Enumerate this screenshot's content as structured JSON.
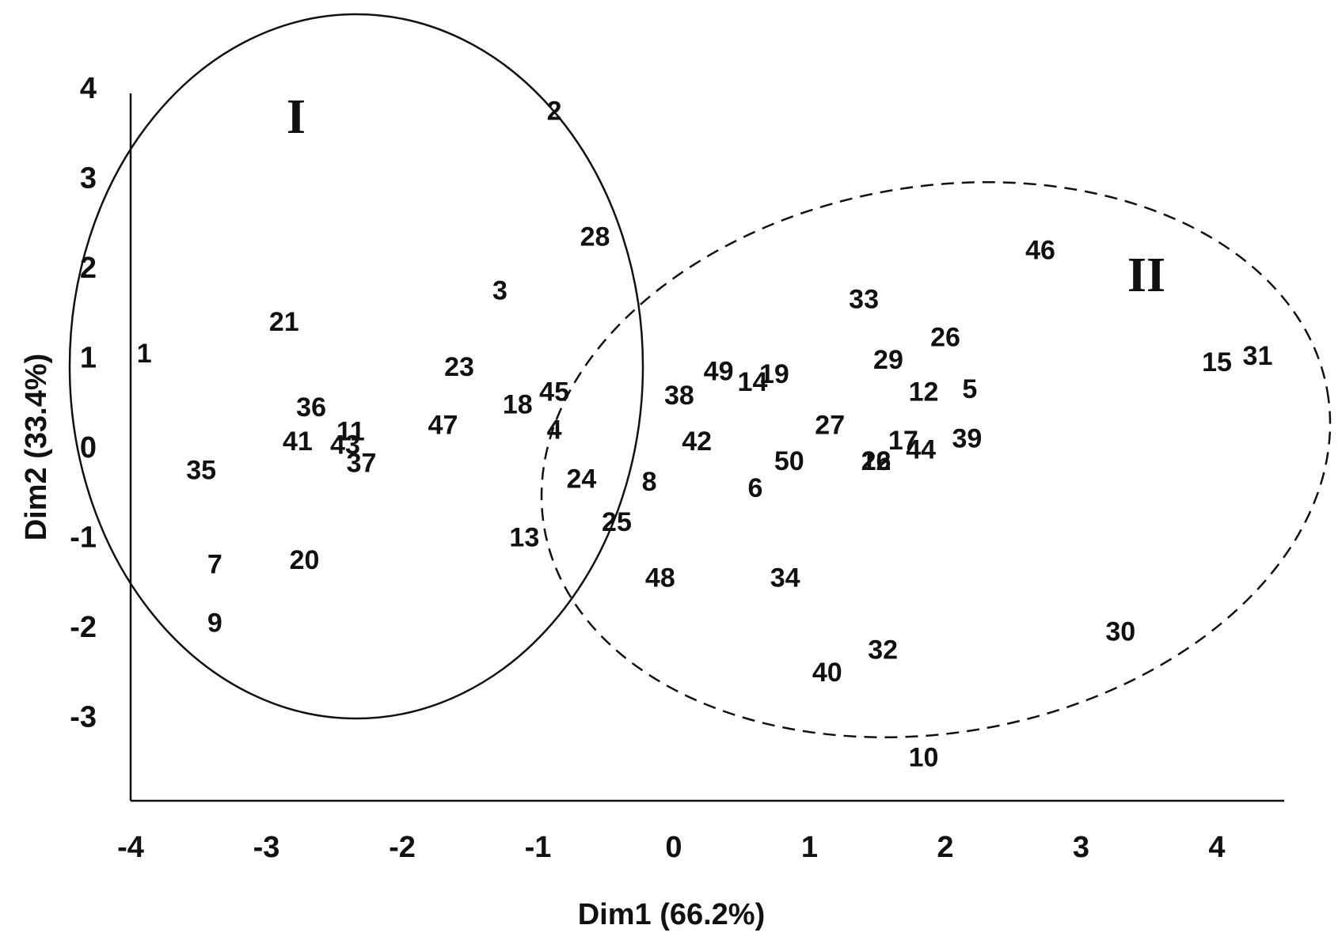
{
  "chart_data": {
    "type": "scatter",
    "title": "",
    "xlabel": "Dim1 (66.2%)",
    "ylabel": "Dim2 (33.4%)",
    "xlim": [
      -4,
      4.5
    ],
    "ylim": [
      -4,
      4
    ],
    "xticks": [
      "-4",
      "-3",
      "-2",
      "-1",
      "0",
      "1",
      "2",
      "3",
      "4"
    ],
    "yticks": [
      "4",
      "3",
      "2",
      "1",
      "0",
      "-1",
      "-2",
      "-3"
    ],
    "grid": false,
    "legend": "none",
    "marker": "point labels only",
    "points": [
      {
        "label": "1",
        "x": -3.9,
        "y": 1.05
      },
      {
        "label": "2",
        "x": -0.88,
        "y": 3.75
      },
      {
        "label": "3",
        "x": -1.28,
        "y": 1.75
      },
      {
        "label": "4",
        "x": -0.88,
        "y": 0.2
      },
      {
        "label": "5",
        "x": 2.18,
        "y": 0.65
      },
      {
        "label": "6",
        "x": 0.6,
        "y": -0.45
      },
      {
        "label": "7",
        "x": -3.38,
        "y": -1.3
      },
      {
        "label": "8",
        "x": -0.18,
        "y": -0.38
      },
      {
        "label": "9",
        "x": -3.38,
        "y": -1.95
      },
      {
        "label": "10",
        "x": 1.84,
        "y": -3.45
      },
      {
        "label": "11",
        "x": -2.38,
        "y": 0.18
      },
      {
        "label": "12",
        "x": 1.84,
        "y": 0.62
      },
      {
        "label": "13",
        "x": -1.1,
        "y": -1.0
      },
      {
        "label": "14",
        "x": 0.58,
        "y": 0.73
      },
      {
        "label": "15",
        "x": 4.0,
        "y": 0.95
      },
      {
        "label": "16",
        "x": 1.49,
        "y": -0.15
      },
      {
        "label": "17",
        "x": 1.69,
        "y": 0.08
      },
      {
        "label": "18",
        "x": -1.15,
        "y": 0.48
      },
      {
        "label": "19",
        "x": 0.74,
        "y": 0.82
      },
      {
        "label": "20",
        "x": -2.72,
        "y": -1.25
      },
      {
        "label": "21",
        "x": -2.87,
        "y": 1.4
      },
      {
        "label": "22",
        "x": 1.49,
        "y": -0.15
      },
      {
        "label": "23",
        "x": -1.58,
        "y": 0.9
      },
      {
        "label": "24",
        "x": -0.68,
        "y": -0.35
      },
      {
        "label": "25",
        "x": -0.42,
        "y": -0.83
      },
      {
        "label": "26",
        "x": 2.0,
        "y": 1.23
      },
      {
        "label": "27",
        "x": 1.15,
        "y": 0.25
      },
      {
        "label": "28",
        "x": -0.58,
        "y": 2.35
      },
      {
        "label": "29",
        "x": 1.58,
        "y": 0.98
      },
      {
        "label": "30",
        "x": 3.29,
        "y": -2.05
      },
      {
        "label": "31",
        "x": 4.3,
        "y": 1.02
      },
      {
        "label": "32",
        "x": 1.54,
        "y": -2.25
      },
      {
        "label": "33",
        "x": 1.4,
        "y": 1.65
      },
      {
        "label": "34",
        "x": 0.82,
        "y": -1.45
      },
      {
        "label": "35",
        "x": -3.48,
        "y": -0.25
      },
      {
        "label": "36",
        "x": -2.67,
        "y": 0.45
      },
      {
        "label": "37",
        "x": -2.3,
        "y": -0.17
      },
      {
        "label": "38",
        "x": 0.04,
        "y": 0.58
      },
      {
        "label": "39",
        "x": 2.16,
        "y": 0.1
      },
      {
        "label": "40",
        "x": 1.13,
        "y": -2.5
      },
      {
        "label": "41",
        "x": -2.77,
        "y": 0.07
      },
      {
        "label": "42",
        "x": 0.17,
        "y": 0.07
      },
      {
        "label": "43",
        "x": -2.42,
        "y": 0.03
      },
      {
        "label": "44",
        "x": 1.82,
        "y": -0.02
      },
      {
        "label": "45",
        "x": -0.88,
        "y": 0.62
      },
      {
        "label": "46",
        "x": 2.7,
        "y": 2.2
      },
      {
        "label": "47",
        "x": -1.7,
        "y": 0.25
      },
      {
        "label": "48",
        "x": -0.1,
        "y": -1.45
      },
      {
        "label": "49",
        "x": 0.33,
        "y": 0.85
      },
      {
        "label": "50",
        "x": 0.85,
        "y": -0.15
      }
    ],
    "groups": [
      {
        "label": "I",
        "line": "solid",
        "members": [
          "1",
          "2",
          "3",
          "4",
          "7",
          "9",
          "11",
          "13",
          "18",
          "20",
          "21",
          "23",
          "24",
          "28",
          "35",
          "36",
          "37",
          "41",
          "43",
          "45",
          "47"
        ]
      },
      {
        "label": "II",
        "line": "dashed",
        "members": [
          "5",
          "6",
          "8",
          "10",
          "12",
          "14",
          "15",
          "16",
          "17",
          "19",
          "22",
          "25",
          "26",
          "27",
          "29",
          "30",
          "31",
          "32",
          "33",
          "34",
          "38",
          "39",
          "40",
          "42",
          "44",
          "46",
          "48",
          "49",
          "50"
        ]
      }
    ]
  }
}
